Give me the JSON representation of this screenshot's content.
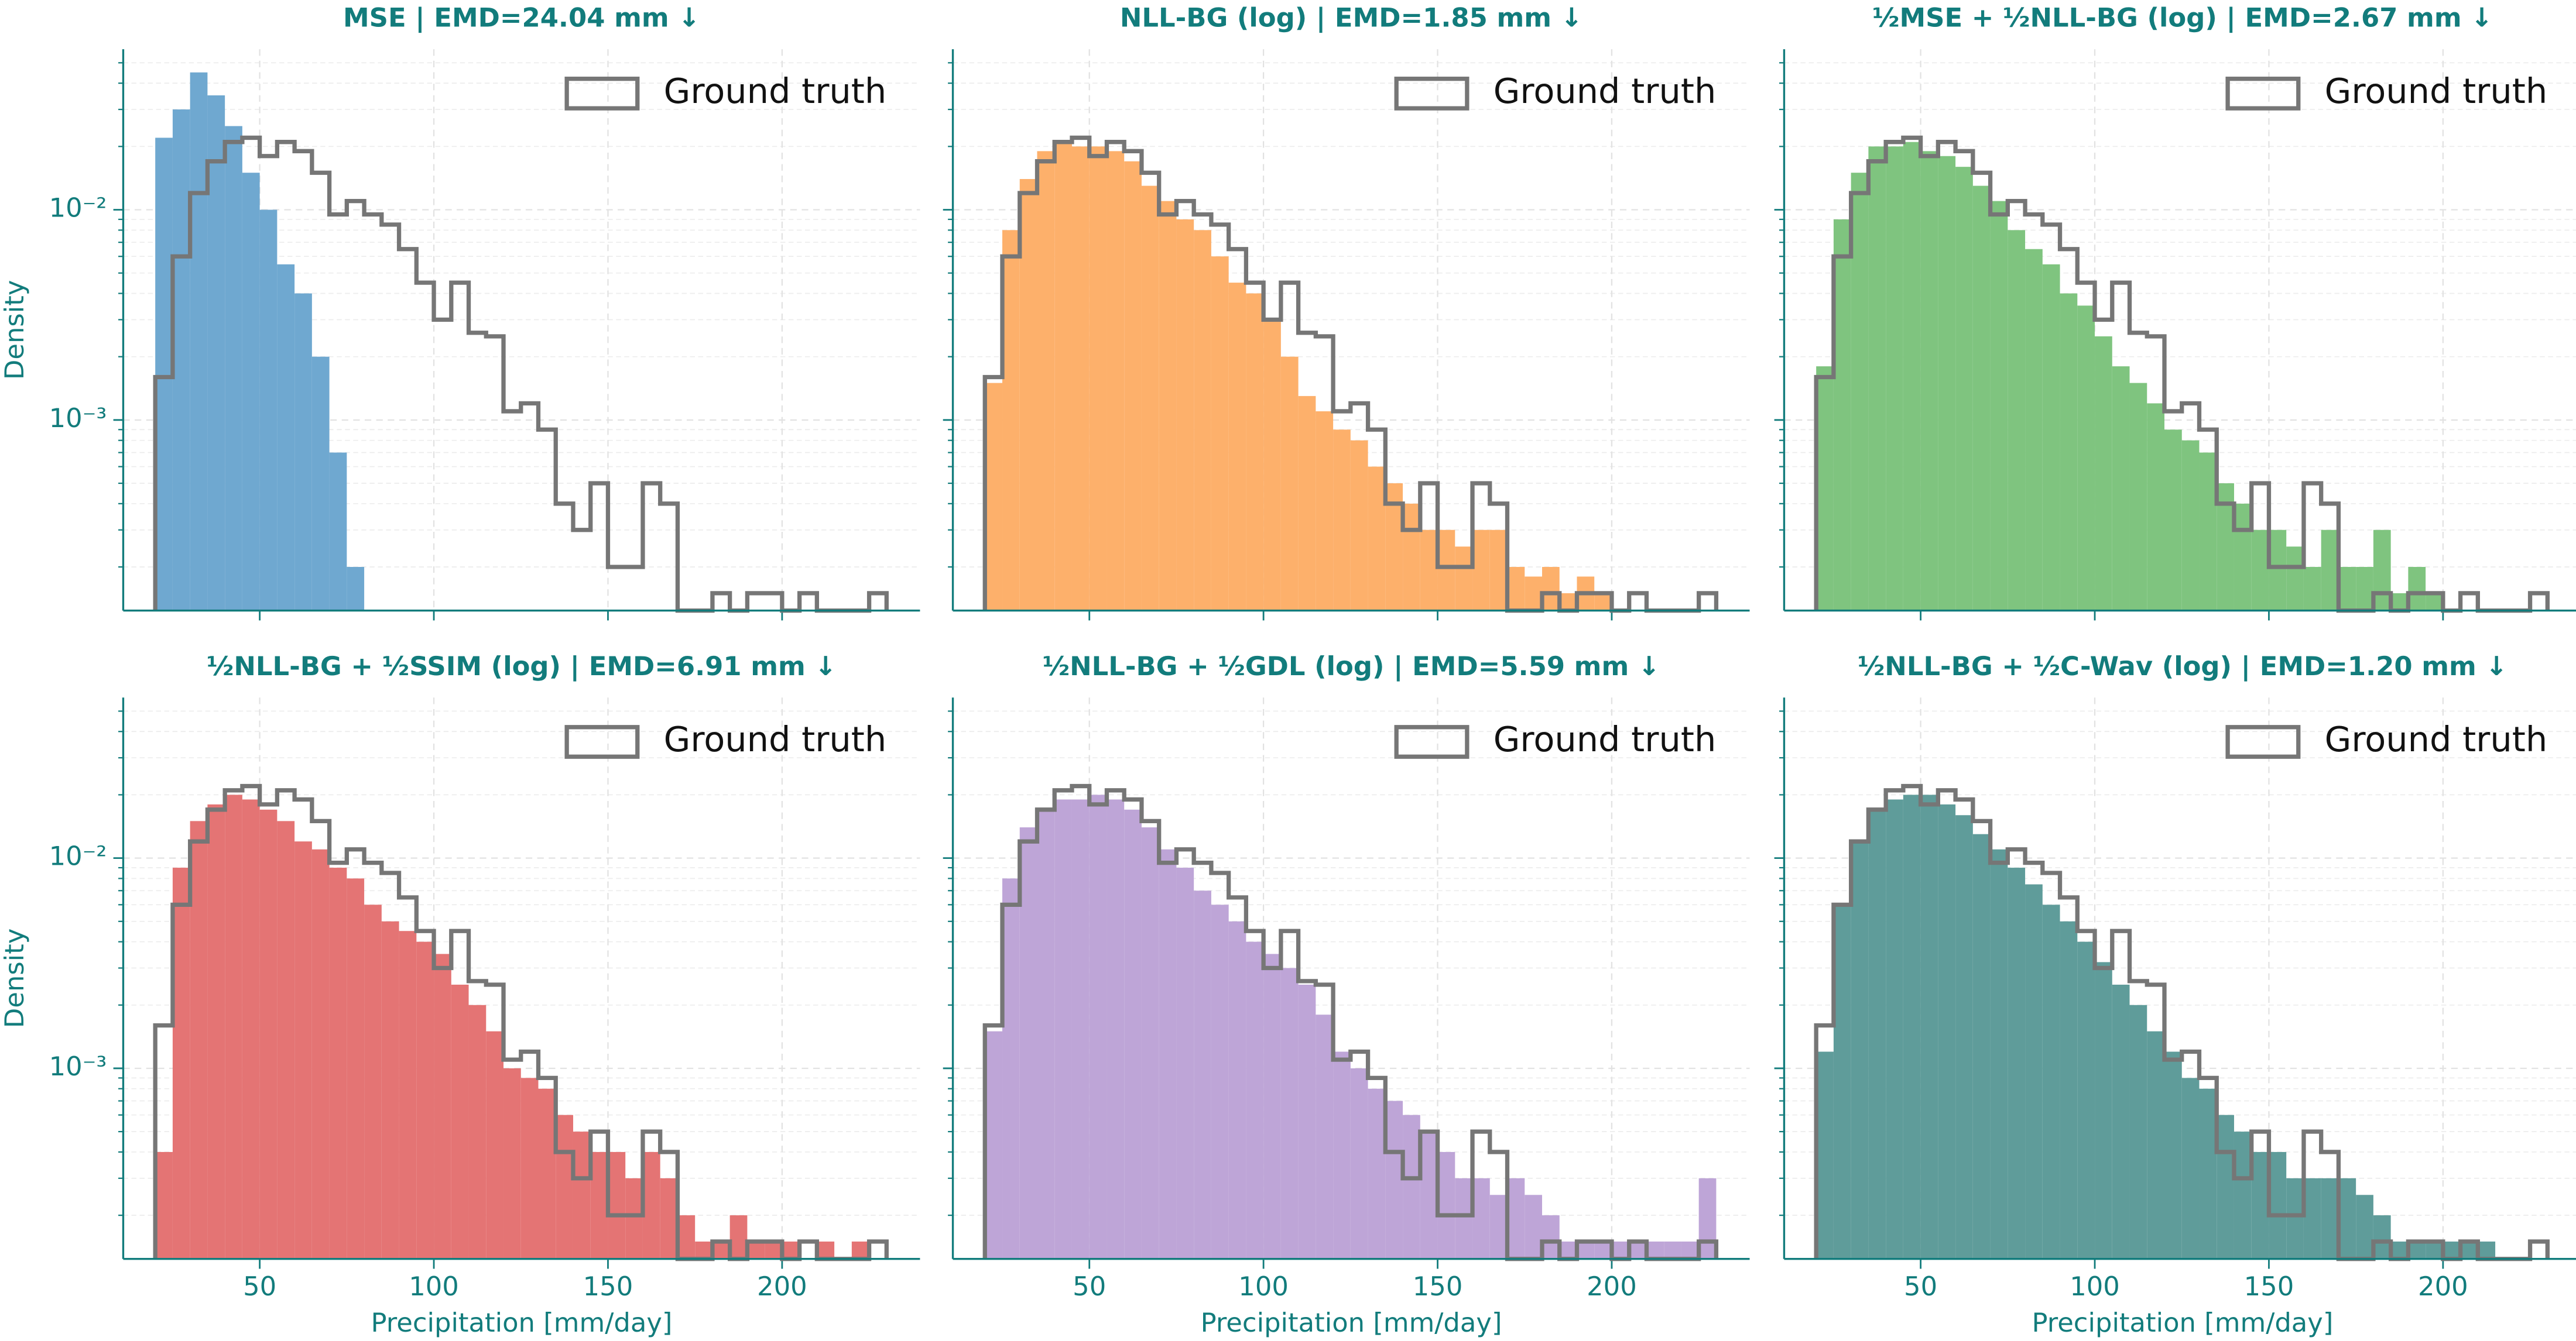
{
  "chart_data": [
    {
      "type": "histogram",
      "title": "MSE | EMD=24.04 mm ↓",
      "ylabel": "Density",
      "bins": [
        20,
        25,
        30,
        35,
        40,
        45,
        50,
        55,
        60,
        65,
        70,
        75,
        80,
        85,
        90,
        95,
        100,
        105,
        110,
        115,
        120,
        125,
        130,
        135,
        140,
        145,
        150,
        155,
        160,
        165,
        170,
        175,
        180,
        185,
        190,
        195,
        200,
        205,
        210,
        215,
        220,
        225,
        230
      ],
      "series": [
        {
          "color": "#6fa8d0",
          "style": "filled",
          "values": [
            0.022,
            0.03,
            0.045,
            0.035,
            0.025,
            0.015,
            0.01,
            0.0055,
            0.004,
            0.002,
            0.0007,
            0.0002,
            0,
            0,
            0,
            0,
            0,
            0,
            0,
            0,
            0,
            0,
            0,
            0,
            0,
            0,
            0,
            0,
            0,
            0,
            0,
            0,
            0,
            0,
            0,
            0,
            0,
            0,
            0,
            0,
            0,
            0
          ]
        },
        {
          "name": "Ground truth",
          "color": "#767676",
          "style": "step",
          "values": [
            0.0016,
            0.006,
            0.012,
            0.017,
            0.021,
            0.022,
            0.018,
            0.021,
            0.019,
            0.015,
            0.0095,
            0.011,
            0.0095,
            0.0085,
            0.0065,
            0.0045,
            0.003,
            0.0045,
            0.0026,
            0.0025,
            0.0011,
            0.0012,
            0.0009,
            0.0004,
            0.0003,
            0.0005,
            0.0002,
            0.0002,
            0.0005,
            0.0004,
            0,
            0,
            0.00015,
            0,
            0.00015,
            0.00015,
            0,
            0.00015,
            0,
            0,
            0,
            0.00015
          ]
        }
      ],
      "xlim": [
        10.8,
        239.6
      ],
      "ylim": [
        0.000124,
        0.058
      ],
      "yscale": "log",
      "xticks": [
        50,
        100,
        150,
        200
      ],
      "yticks": [
        {
          "value": 0.01,
          "label": "10⁻²"
        },
        {
          "value": 0.001,
          "label": "10⁻³"
        }
      ],
      "xticklabels": false,
      "yticklabels": true,
      "grid": true,
      "legend": "upper right"
    },
    {
      "type": "histogram",
      "title": "NLL-BG (log) | EMD=1.85 mm ↓",
      "bins": [
        20,
        25,
        30,
        35,
        40,
        45,
        50,
        55,
        60,
        65,
        70,
        75,
        80,
        85,
        90,
        95,
        100,
        105,
        110,
        115,
        120,
        125,
        130,
        135,
        140,
        145,
        150,
        155,
        160,
        165,
        170,
        175,
        180,
        185,
        190,
        195,
        200,
        205,
        210,
        215,
        220,
        225,
        230
      ],
      "series": [
        {
          "color": "#fdb06b",
          "style": "filled",
          "values": [
            0.0015,
            0.008,
            0.014,
            0.019,
            0.021,
            0.02,
            0.02,
            0.019,
            0.017,
            0.013,
            0.011,
            0.009,
            0.008,
            0.006,
            0.0045,
            0.004,
            0.003,
            0.002,
            0.0013,
            0.0011,
            0.0009,
            0.0008,
            0.0006,
            0.0005,
            0.0004,
            0.0003,
            0.0003,
            0.00025,
            0.0003,
            0.0003,
            0.0002,
            0.00018,
            0.0002,
            0.00015,
            0.00018,
            0.00015,
            0,
            0,
            0,
            0,
            0,
            0
          ]
        },
        {
          "name": "Ground truth",
          "color": "#767676",
          "style": "step",
          "values": [
            0.0016,
            0.006,
            0.012,
            0.017,
            0.021,
            0.022,
            0.018,
            0.021,
            0.019,
            0.015,
            0.0095,
            0.011,
            0.0095,
            0.0085,
            0.0065,
            0.0045,
            0.003,
            0.0045,
            0.0026,
            0.0025,
            0.0011,
            0.0012,
            0.0009,
            0.0004,
            0.0003,
            0.0005,
            0.0002,
            0.0002,
            0.0005,
            0.0004,
            0,
            0,
            0.00015,
            0,
            0.00015,
            0.00015,
            0,
            0.00015,
            0,
            0,
            0,
            0.00015
          ]
        }
      ],
      "xlim": [
        10.8,
        239.6
      ],
      "ylim": [
        0.000124,
        0.058
      ],
      "yscale": "log",
      "xticks": [
        50,
        100,
        150,
        200
      ],
      "yticks": [
        0.01,
        0.001
      ],
      "xticklabels": false,
      "yticklabels": false,
      "grid": true,
      "legend": "upper right"
    },
    {
      "type": "histogram",
      "title": "½MSE + ½NLL-BG (log) | EMD=2.67 mm ↓",
      "bins": [
        20,
        25,
        30,
        35,
        40,
        45,
        50,
        55,
        60,
        65,
        70,
        75,
        80,
        85,
        90,
        95,
        100,
        105,
        110,
        115,
        120,
        125,
        130,
        135,
        140,
        145,
        150,
        155,
        160,
        165,
        170,
        175,
        180,
        185,
        190,
        195,
        200,
        205,
        210,
        215,
        220,
        225,
        230
      ],
      "series": [
        {
          "color": "#7fc47f",
          "style": "filled",
          "values": [
            0.0018,
            0.009,
            0.015,
            0.02,
            0.02,
            0.021,
            0.019,
            0.018,
            0.016,
            0.013,
            0.011,
            0.008,
            0.0065,
            0.0055,
            0.004,
            0.0035,
            0.0025,
            0.0018,
            0.0015,
            0.0012,
            0.0009,
            0.0008,
            0.0007,
            0.0005,
            0.0004,
            0.0003,
            0.0003,
            0.00025,
            0.0002,
            0.0003,
            0.0002,
            0.0002,
            0.0003,
            0.00015,
            0.0002,
            0.00015,
            0,
            0,
            0,
            0,
            0,
            0
          ]
        },
        {
          "name": "Ground truth",
          "color": "#767676",
          "style": "step",
          "values": [
            0.0016,
            0.006,
            0.012,
            0.017,
            0.021,
            0.022,
            0.018,
            0.021,
            0.019,
            0.015,
            0.0095,
            0.011,
            0.0095,
            0.0085,
            0.0065,
            0.0045,
            0.003,
            0.0045,
            0.0026,
            0.0025,
            0.0011,
            0.0012,
            0.0009,
            0.0004,
            0.0003,
            0.0005,
            0.0002,
            0.0002,
            0.0005,
            0.0004,
            0,
            0,
            0.00015,
            0,
            0.00015,
            0.00015,
            0,
            0.00015,
            0,
            0,
            0,
            0.00015
          ]
        }
      ],
      "xlim": [
        10.8,
        239.6
      ],
      "ylim": [
        0.000124,
        0.058
      ],
      "yscale": "log",
      "xticks": [
        50,
        100,
        150,
        200
      ],
      "yticks": [
        0.01,
        0.001
      ],
      "xticklabels": false,
      "yticklabels": false,
      "grid": true,
      "legend": "upper right"
    },
    {
      "type": "histogram",
      "title": "½NLL-BG + ½SSIM (log) | EMD=6.91 mm ↓",
      "xlabel": "Precipitation [mm/day]",
      "ylabel": "Density",
      "bins": [
        20,
        25,
        30,
        35,
        40,
        45,
        50,
        55,
        60,
        65,
        70,
        75,
        80,
        85,
        90,
        95,
        100,
        105,
        110,
        115,
        120,
        125,
        130,
        135,
        140,
        145,
        150,
        155,
        160,
        165,
        170,
        175,
        180,
        185,
        190,
        195,
        200,
        205,
        210,
        215,
        220,
        225,
        230
      ],
      "series": [
        {
          "color": "#e47474",
          "style": "filled",
          "values": [
            0.0004,
            0.009,
            0.015,
            0.018,
            0.02,
            0.019,
            0.017,
            0.015,
            0.012,
            0.011,
            0.009,
            0.008,
            0.006,
            0.005,
            0.0045,
            0.004,
            0.0035,
            0.0025,
            0.002,
            0.0015,
            0.001,
            0.0009,
            0.0008,
            0.0006,
            0.0005,
            0.0004,
            0.0004,
            0.0003,
            0.0004,
            0.0003,
            0.0002,
            0.00015,
            0.00015,
            0.0002,
            0.00015,
            0.00015,
            0.00015,
            0,
            0.00015,
            0,
            0.00015,
            0
          ]
        },
        {
          "name": "Ground truth",
          "color": "#767676",
          "style": "step",
          "values": [
            0.0016,
            0.006,
            0.012,
            0.017,
            0.021,
            0.022,
            0.018,
            0.021,
            0.019,
            0.015,
            0.0095,
            0.011,
            0.0095,
            0.0085,
            0.0065,
            0.0045,
            0.003,
            0.0045,
            0.0026,
            0.0025,
            0.0011,
            0.0012,
            0.0009,
            0.0004,
            0.0003,
            0.0005,
            0.0002,
            0.0002,
            0.0005,
            0.0004,
            0,
            0,
            0.00015,
            0,
            0.00015,
            0.00015,
            0,
            0.00015,
            0,
            0,
            0,
            0.00015
          ]
        }
      ],
      "xlim": [
        10.8,
        239.6
      ],
      "ylim": [
        0.000124,
        0.058
      ],
      "yscale": "log",
      "xticks": [
        50,
        100,
        150,
        200
      ],
      "yticks": [
        {
          "value": 0.01,
          "label": "10⁻²"
        },
        {
          "value": 0.001,
          "label": "10⁻³"
        }
      ],
      "xticklabels": true,
      "yticklabels": true,
      "grid": true,
      "legend": "upper right"
    },
    {
      "type": "histogram",
      "title": "½NLL-BG + ½GDL (log) | EMD=5.59 mm ↓",
      "xlabel": "Precipitation [mm/day]",
      "bins": [
        20,
        25,
        30,
        35,
        40,
        45,
        50,
        55,
        60,
        65,
        70,
        75,
        80,
        85,
        90,
        95,
        100,
        105,
        110,
        115,
        120,
        125,
        130,
        135,
        140,
        145,
        150,
        155,
        160,
        165,
        170,
        175,
        180,
        185,
        190,
        195,
        200,
        205,
        210,
        215,
        220,
        225,
        230
      ],
      "series": [
        {
          "color": "#bea5d7",
          "style": "filled",
          "values": [
            0.0015,
            0.008,
            0.014,
            0.017,
            0.019,
            0.019,
            0.02,
            0.019,
            0.017,
            0.014,
            0.011,
            0.009,
            0.007,
            0.006,
            0.005,
            0.004,
            0.0035,
            0.003,
            0.0025,
            0.0018,
            0.0012,
            0.001,
            0.0008,
            0.0007,
            0.0006,
            0.0005,
            0.0004,
            0.0003,
            0.0003,
            0.00025,
            0.0003,
            0.00025,
            0.0002,
            0.00015,
            0.00015,
            0.00015,
            0.00015,
            0.00015,
            0.00015,
            0.00015,
            0.00015,
            0.0003
          ]
        },
        {
          "name": "Ground truth",
          "color": "#767676",
          "style": "step",
          "values": [
            0.0016,
            0.006,
            0.012,
            0.017,
            0.021,
            0.022,
            0.018,
            0.021,
            0.019,
            0.015,
            0.0095,
            0.011,
            0.0095,
            0.0085,
            0.0065,
            0.0045,
            0.003,
            0.0045,
            0.0026,
            0.0025,
            0.0011,
            0.0012,
            0.0009,
            0.0004,
            0.0003,
            0.0005,
            0.0002,
            0.0002,
            0.0005,
            0.0004,
            0,
            0,
            0.00015,
            0,
            0.00015,
            0.00015,
            0,
            0.00015,
            0,
            0,
            0,
            0.00015
          ]
        }
      ],
      "xlim": [
        10.8,
        239.6
      ],
      "ylim": [
        0.000124,
        0.058
      ],
      "yscale": "log",
      "xticks": [
        50,
        100,
        150,
        200
      ],
      "yticks": [
        0.01,
        0.001
      ],
      "xticklabels": true,
      "yticklabels": false,
      "grid": true,
      "legend": "upper right"
    },
    {
      "type": "histogram",
      "title": "½NLL-BG + ½C-Wav (log) | EMD=1.20 mm ↓",
      "xlabel": "Precipitation [mm/day]",
      "bins": [
        20,
        25,
        30,
        35,
        40,
        45,
        50,
        55,
        60,
        65,
        70,
        75,
        80,
        85,
        90,
        95,
        100,
        105,
        110,
        115,
        120,
        125,
        130,
        135,
        140,
        145,
        150,
        155,
        160,
        165,
        170,
        175,
        180,
        185,
        190,
        195,
        200,
        205,
        210,
        215,
        220,
        225,
        230
      ],
      "series": [
        {
          "color": "#5f9c9a",
          "style": "filled",
          "values": [
            0.0012,
            0.006,
            0.012,
            0.017,
            0.019,
            0.02,
            0.02,
            0.018,
            0.016,
            0.013,
            0.011,
            0.009,
            0.0075,
            0.006,
            0.005,
            0.004,
            0.0032,
            0.0025,
            0.002,
            0.0015,
            0.0012,
            0.0009,
            0.0008,
            0.0006,
            0.0005,
            0.0004,
            0.0004,
            0.0003,
            0.0003,
            0.0003,
            0.0003,
            0.00025,
            0.0002,
            0.00015,
            0.00015,
            0.00015,
            0.00015,
            0.00015,
            0.00015,
            0,
            0,
            0
          ]
        },
        {
          "name": "Ground truth",
          "color": "#767676",
          "style": "step",
          "values": [
            0.0016,
            0.006,
            0.012,
            0.017,
            0.021,
            0.022,
            0.018,
            0.021,
            0.019,
            0.015,
            0.0095,
            0.011,
            0.0095,
            0.0085,
            0.0065,
            0.0045,
            0.003,
            0.0045,
            0.0026,
            0.0025,
            0.0011,
            0.0012,
            0.0009,
            0.0004,
            0.0003,
            0.0005,
            0.0002,
            0.0002,
            0.0005,
            0.0004,
            0,
            0,
            0.00015,
            0,
            0.00015,
            0.00015,
            0,
            0.00015,
            0,
            0,
            0,
            0.00015
          ]
        }
      ],
      "xlim": [
        10.8,
        239.6
      ],
      "ylim": [
        0.000124,
        0.058
      ],
      "yscale": "log",
      "xticks": [
        50,
        100,
        150,
        200
      ],
      "yticks": [
        0.01,
        0.001
      ],
      "xticklabels": true,
      "yticklabels": false,
      "grid": true,
      "legend": "upper right"
    }
  ]
}
